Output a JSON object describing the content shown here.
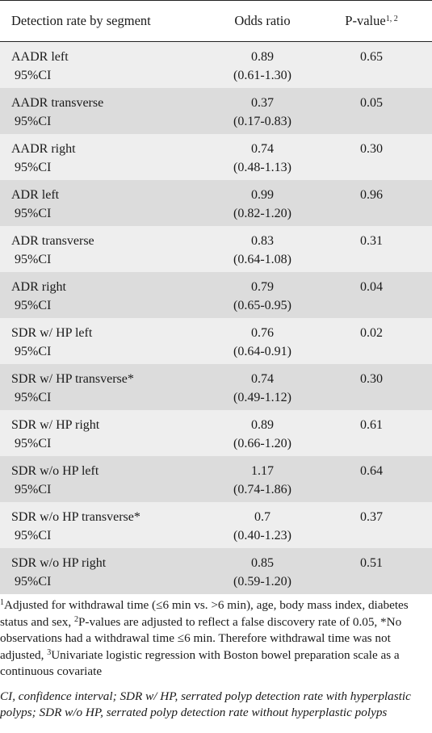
{
  "header": {
    "col1": "Detection rate by segment",
    "col2": "Odds ratio",
    "col3_main": "P-value",
    "col3_sup": "1, 2"
  },
  "rows": [
    {
      "segment": "AADR left",
      "ci_label": "95%CI",
      "odds": "0.89",
      "ci": "(0.61-1.30)",
      "p": "0.65"
    },
    {
      "segment": "AADR transverse",
      "ci_label": "95%CI",
      "odds": "0.37",
      "ci": "(0.17-0.83)",
      "p": "0.05"
    },
    {
      "segment": "AADR right",
      "ci_label": "95%CI",
      "odds": "0.74",
      "ci": "(0.48-1.13)",
      "p": "0.30"
    },
    {
      "segment": "ADR left",
      "ci_label": "95%CI",
      "odds": "0.99",
      "ci": "(0.82-1.20)",
      "p": "0.96"
    },
    {
      "segment": "ADR transverse",
      "ci_label": "95%CI",
      "odds": "0.83",
      "ci": "(0.64-1.08)",
      "p": "0.31"
    },
    {
      "segment": "ADR right",
      "ci_label": "95%CI",
      "odds": "0.79",
      "ci": "(0.65-0.95)",
      "p": "0.04"
    },
    {
      "segment": "SDR w/ HP left",
      "ci_label": "95%CI",
      "odds": "0.76",
      "ci": "(0.64-0.91)",
      "p": "0.02"
    },
    {
      "segment": "SDR w/ HP transverse*",
      "ci_label": "95%CI",
      "odds": "0.74",
      "ci": "(0.49-1.12)",
      "p": "0.30"
    },
    {
      "segment": "SDR w/ HP right",
      "ci_label": "95%CI",
      "odds": "0.89",
      "ci": "(0.66-1.20)",
      "p": "0.61"
    },
    {
      "segment": "SDR w/o HP left",
      "ci_label": "95%CI",
      "odds": "1.17",
      "ci": "(0.74-1.86)",
      "p": "0.64"
    },
    {
      "segment": "SDR w/o HP transverse*",
      "ci_label": "95%CI",
      "odds": "0.7",
      "ci": "(0.40-1.23)",
      "p": "0.37"
    },
    {
      "segment": "SDR w/o HP right",
      "ci_label": "95%CI",
      "odds": "0.85",
      "ci": "(0.59-1.20)",
      "p": "0.51"
    }
  ],
  "footnote": {
    "sup1": "1",
    "part1": "Adjusted for withdrawal time (≤6 min vs. >6 min), age, body mass index, diabetes status and sex, ",
    "sup2": "2",
    "part2": "P-values are adjusted to reflect a false discovery rate of 0.05, *No observations had a withdrawal time ≤6 min. Therefore withdrawal time was not adjusted, ",
    "sup3": "3",
    "part3": "Univariate logistic regression with Boston bowel preparation scale as a continuous covariate"
  },
  "abbreviations": "CI, confidence interval; SDR w/ HP, serrated polyp detection rate with hyperplastic polyps; SDR w/o HP, serrated polyp detection rate without hyperplastic polyps"
}
